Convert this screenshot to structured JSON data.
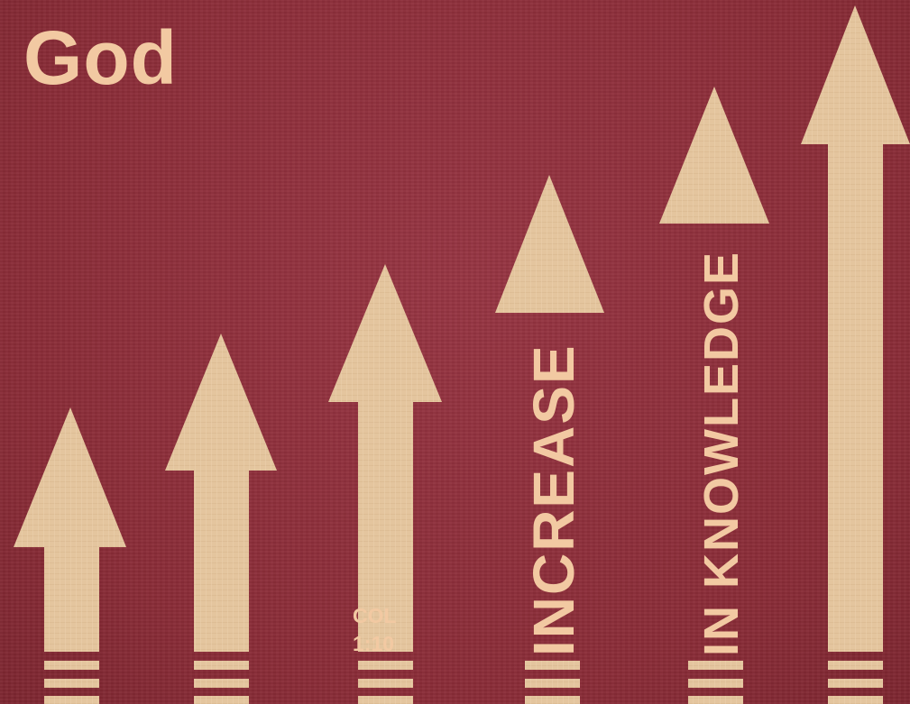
{
  "title": "God",
  "reference": {
    "line1": "COL",
    "line2": "1:10"
  },
  "vertical_text": {
    "increase": "INCREASE",
    "knowledge": "IN KNOWLEDGE"
  },
  "colors": {
    "background": "#8e2f3a",
    "arrow": "#e4c59e",
    "text": "#f2c9a2"
  },
  "arrow_count": 6
}
